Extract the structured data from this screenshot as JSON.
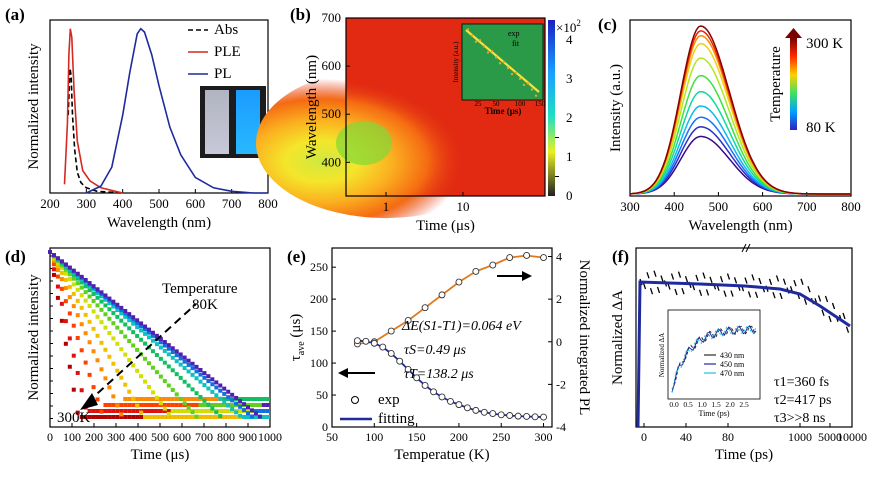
{
  "chart_data": [
    {
      "panel": "(a)",
      "type": "line",
      "xlabel": "Wavelength (nm)",
      "ylabel": "Normalized intensity",
      "xlim": [
        200,
        800
      ],
      "xticks": [
        "200",
        "300",
        "400",
        "500",
        "600",
        "700",
        "800"
      ],
      "legend_position": "top-right",
      "series": [
        {
          "name": "Abs",
          "color": "#000000",
          "dash": true,
          "x": [
            250,
            255,
            258,
            262,
            268,
            275,
            285,
            300,
            330,
            400
          ],
          "y": [
            0.45,
            0.72,
            0.68,
            0.45,
            0.25,
            0.12,
            0.06,
            0.03,
            0.01,
            0.0
          ]
        },
        {
          "name": "PLE",
          "color": "#d42a20",
          "x": [
            240,
            248,
            252,
            256,
            260,
            266,
            275,
            290,
            310,
            340,
            380,
            400
          ],
          "y": [
            0.05,
            0.4,
            0.8,
            0.95,
            0.9,
            0.6,
            0.3,
            0.13,
            0.07,
            0.03,
            0.01,
            0.0
          ]
        },
        {
          "name": "PL",
          "color": "#1f2a9e",
          "x": [
            300,
            340,
            370,
            400,
            420,
            440,
            450,
            460,
            480,
            500,
            530,
            560,
            600,
            650,
            700,
            760,
            800
          ],
          "y": [
            0.0,
            0.04,
            0.15,
            0.45,
            0.7,
            0.92,
            0.95,
            0.93,
            0.8,
            0.62,
            0.38,
            0.22,
            0.09,
            0.03,
            0.01,
            0.0,
            0.0
          ]
        }
      ]
    },
    {
      "panel": "(b)",
      "type": "heatmap",
      "xlabel": "Time (μs)",
      "ylabel": "Wavelength (nm)",
      "xscale": "log",
      "xticks": [
        "1",
        "10"
      ],
      "yticks": [
        "400",
        "500",
        "600",
        "700"
      ],
      "ylim": [
        330,
        700
      ],
      "colorbar": {
        "unit": "×10",
        "exponent": "2",
        "ticks": [
          "0",
          "1",
          "2",
          "3",
          "4"
        ],
        "extra_ticks": [
          "0.5",
          "1.5"
        ]
      },
      "inset": {
        "xlabel": "Time (μs)",
        "ylabel": "Intensity (a.u.)",
        "xticks": [
          "25",
          "50",
          "100",
          "150"
        ],
        "legend": [
          "exp",
          "fit"
        ]
      }
    },
    {
      "panel": "(c)",
      "type": "line",
      "xlabel": "Wavelength (nm)",
      "ylabel": "Intensity (a.u.)",
      "xlim": [
        300,
        800
      ],
      "xticks": [
        "300",
        "400",
        "500",
        "600",
        "700",
        "800"
      ],
      "colorbar": {
        "label": "Temperature",
        "top": "300 K",
        "bottom": "80 K"
      },
      "peak_nm": 460,
      "temperature_curves_relative_amplitude": [
        0.36,
        0.42,
        0.48,
        0.55,
        0.64,
        0.74,
        0.85,
        0.94,
        0.99,
        1.02,
        1.05
      ]
    },
    {
      "panel": "(d)",
      "type": "scatter",
      "xlabel": "Time (μs)",
      "ylabel": "Normalized intensity",
      "yscale": "log",
      "xlim": [
        0,
        1000
      ],
      "xticks": [
        "0",
        "100",
        "200",
        "300",
        "400",
        "500",
        "600",
        "700",
        "800",
        "900",
        "1000"
      ],
      "annotations": [
        "Temperature",
        "80K",
        "300K"
      ],
      "decay_lifetimes_us": [
        16,
        22,
        32,
        45,
        60,
        80,
        100,
        120,
        138,
        150,
        160
      ]
    },
    {
      "panel": "(e)",
      "type": "scatter",
      "xlabel": "Temperatue (K)",
      "ylabel_left": "τave (μs)",
      "ylabel_left_sub": "ave",
      "ylabel_right": "Normalized integrated PL",
      "xlim": [
        50,
        310
      ],
      "xticks": [
        "50",
        "100",
        "150",
        "200",
        "250",
        "300"
      ],
      "ylim_left": [
        0,
        280
      ],
      "yticks_left": [
        "0",
        "50",
        "100",
        "150",
        "200",
        "250"
      ],
      "ylim_right": [
        -4,
        4.4
      ],
      "yticks_right": [
        "-4",
        "-2",
        "0",
        "2",
        "4"
      ],
      "legend": [
        "exp",
        "fitting"
      ],
      "annotations": {
        "dE": "ΔE(S1-T1)=0.064 eV",
        "tauS": "τS=0.49 μs",
        "tauT": "τT=138.2 μs"
      },
      "series": [
        {
          "name": "integrated PL",
          "axis": "right",
          "color": "#e07a1f",
          "x": [
            80,
            100,
            120,
            140,
            160,
            180,
            200,
            220,
            240,
            260,
            280,
            300
          ],
          "y": [
            -0.1,
            0.0,
            0.5,
            1.0,
            1.6,
            2.2,
            2.8,
            3.3,
            3.6,
            3.95,
            4.05,
            3.95
          ]
        },
        {
          "name": "τave",
          "axis": "left",
          "color": "#1f2a9e",
          "x": [
            80,
            90,
            100,
            110,
            120,
            130,
            140,
            150,
            160,
            170,
            180,
            190,
            200,
            210,
            220,
            230,
            240,
            250,
            260,
            270,
            280,
            290,
            300
          ],
          "y": [
            135,
            134,
            131,
            125,
            115,
            103,
            90,
            77,
            65,
            55,
            47,
            40,
            35,
            30,
            26,
            23,
            21,
            19,
            18,
            17,
            16.5,
            16,
            15.5
          ]
        }
      ]
    },
    {
      "panel": "(f)",
      "type": "line",
      "xlabel": "Time (ps)",
      "ylabel": "Normalized ΔA",
      "xticks": [
        "0",
        "40",
        "80",
        "1000",
        "5000",
        "10000"
      ],
      "annotations": {
        "t1": "τ1=360 fs",
        "t2": "τ2=417 ps",
        "t3": "τ3>>8 ns"
      },
      "inset": {
        "xlabel": "Time (ps)",
        "ylabel": "Normalized ΔA",
        "xticks": [
          "0.0",
          "0.5",
          "1.0",
          "1.5",
          "2.0",
          "2.5"
        ],
        "legend": [
          "430 nm",
          "450 nm",
          "470 nm"
        ]
      }
    }
  ]
}
